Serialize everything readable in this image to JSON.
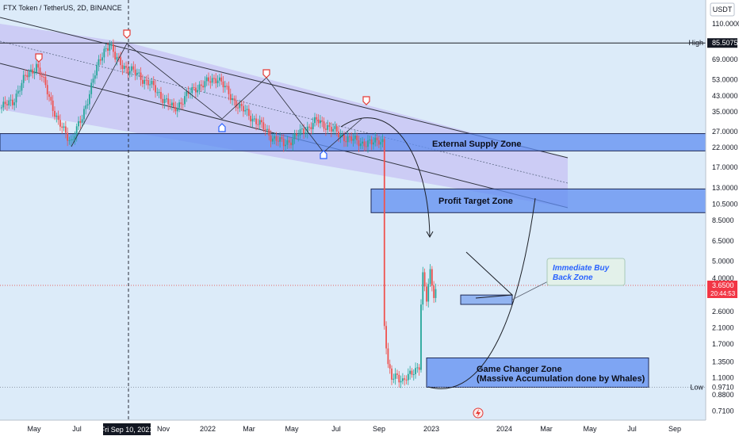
{
  "header": {
    "title": "FTX Token / TetherUS, 2D, BINANCE",
    "currency": "USDT"
  },
  "chart_data": {
    "type": "line",
    "price_axis": {
      "scale": "log",
      "ticks": [
        110.0,
        69.0,
        53.0,
        43.0,
        35.0,
        27.0,
        22.0,
        17.0,
        13.0,
        10.5,
        8.5,
        6.5,
        5.0,
        4.0,
        3.2,
        2.6,
        2.1,
        1.7,
        1.35,
        1.1,
        0.88,
        0.71
      ],
      "tick_labels": [
        "110.0000",
        "69.0000",
        "53.0000",
        "43.0000",
        "35.0000",
        "27.0000",
        "22.0000",
        "17.0000",
        "13.0000",
        "10.5000",
        "8.5000",
        "6.5000",
        "5.0000",
        "4.0000",
        "3.2000",
        "2.6000",
        "2.1000",
        "1.7000",
        "1.3500",
        "1.1000",
        "0.8800",
        "0.7100"
      ],
      "range": [
        0.64,
        125
      ]
    },
    "time_axis": {
      "labels": [
        "May",
        "Jul",
        "Nov",
        "2022",
        "Mar",
        "May",
        "Jul",
        "Sep",
        "2023",
        "2024",
        "Mar",
        "May",
        "Jul",
        "Sep"
      ],
      "cursor_label": "Fri Sep 10, 2021"
    },
    "markers": {
      "high": {
        "label": "High",
        "value": "85.7400",
        "price": 85.74
      },
      "high_line": {
        "value": "85.5075",
        "price": 85.5075
      },
      "low": {
        "label": "Low",
        "value": "0.9710",
        "price": 0.971
      },
      "current": {
        "value": "3.6500",
        "price": 3.65,
        "countdown": "20:44:53"
      }
    },
    "anchors": [
      [
        0,
        37
      ],
      [
        6,
        40
      ],
      [
        13,
        55
      ],
      [
        19,
        64
      ],
      [
        25,
        46
      ],
      [
        31,
        30
      ],
      [
        38,
        24
      ],
      [
        44,
        32
      ],
      [
        50,
        54
      ],
      [
        56,
        78
      ],
      [
        59,
        85.74
      ],
      [
        62,
        70
      ],
      [
        68,
        62
      ],
      [
        75,
        56
      ],
      [
        81,
        50
      ],
      [
        88,
        42
      ],
      [
        94,
        36
      ],
      [
        100,
        42
      ],
      [
        106,
        48
      ],
      [
        112,
        51
      ],
      [
        118,
        55
      ],
      [
        124,
        44
      ],
      [
        130,
        37
      ],
      [
        136,
        33
      ],
      [
        142,
        29
      ],
      [
        148,
        25
      ],
      [
        154,
        23
      ],
      [
        160,
        25
      ],
      [
        166,
        28
      ],
      [
        172,
        31
      ],
      [
        178,
        29
      ],
      [
        184,
        26
      ],
      [
        190,
        24.5
      ],
      [
        196,
        23.5
      ],
      [
        202,
        23
      ],
      [
        206,
        24.5
      ],
      [
        208,
        24
      ],
      [
        209,
        2.2
      ],
      [
        211,
        1.25
      ],
      [
        213,
        1.08
      ],
      [
        216,
        1.15
      ],
      [
        219,
        1.05
      ],
      [
        222,
        1.1
      ],
      [
        225,
        1.2
      ],
      [
        228,
        1.3
      ],
      [
        229,
        2.9
      ],
      [
        230,
        4.1
      ],
      [
        232,
        3.0
      ],
      [
        234,
        4.3
      ],
      [
        236,
        3.3
      ],
      [
        238,
        3.65
      ]
    ],
    "zones": [
      {
        "label": "External Supply Zone",
        "low": 21.0,
        "high": 26.3
      },
      {
        "label": "Profit Target Zone",
        "low": 9.4,
        "high": 12.8
      },
      {
        "label": "Game Changer Zone",
        "line2": "(Massive Accumulation done by Whales)",
        "low": 0.97,
        "high": 1.42
      },
      {
        "label": "",
        "low": 2.85,
        "high": 3.22
      }
    ],
    "annotation": {
      "line1": "Immediate Buy",
      "line2": "Back Zone"
    }
  }
}
